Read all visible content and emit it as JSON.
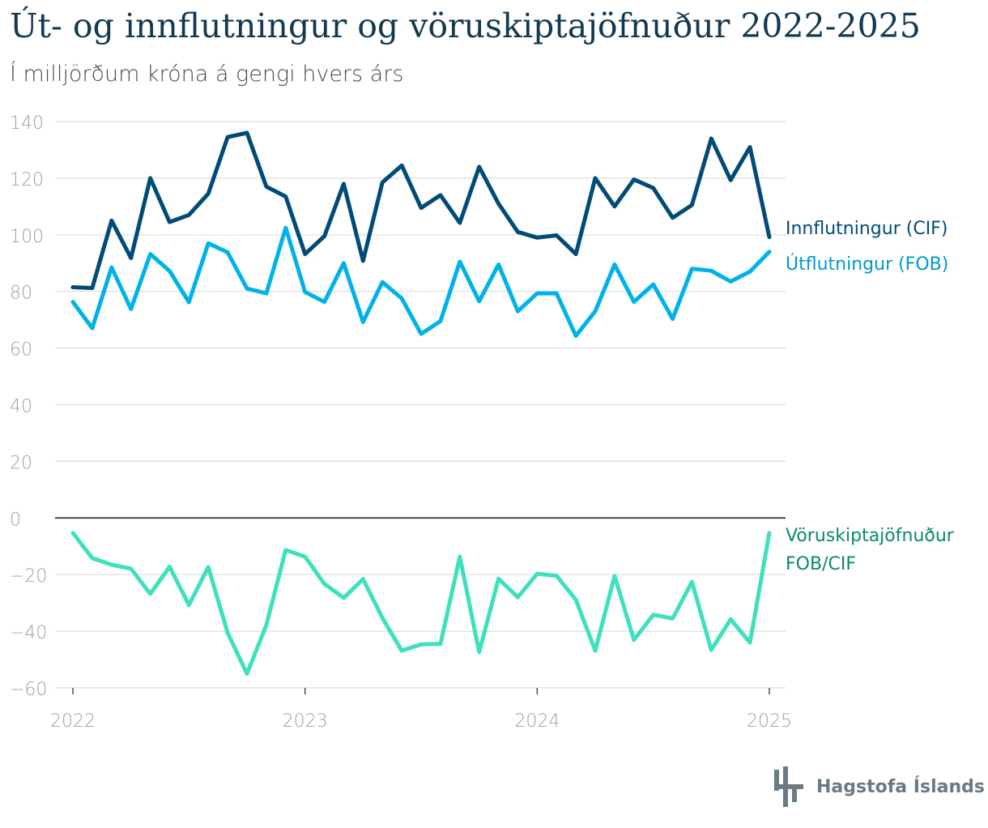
{
  "title": "Út- og innflutningur og vöruskiptajöfnuður 2022-2025",
  "subtitle": "Í milljörðum króna á gengi hvers árs",
  "logo_text": "Hagstofa Íslands",
  "chart_data": {
    "type": "line",
    "x": [
      "2022-01",
      "2022-02",
      "2022-03",
      "2022-04",
      "2022-05",
      "2022-06",
      "2022-07",
      "2022-08",
      "2022-09",
      "2022-10",
      "2022-11",
      "2022-12",
      "2023-01",
      "2023-02",
      "2023-03",
      "2023-04",
      "2023-05",
      "2023-06",
      "2023-07",
      "2023-08",
      "2023-09",
      "2023-10",
      "2023-11",
      "2023-12",
      "2024-01",
      "2024-02",
      "2024-03",
      "2024-04",
      "2024-05",
      "2024-06",
      "2024-07",
      "2024-08",
      "2024-09",
      "2024-10",
      "2024-11",
      "2024-12",
      "2025-01"
    ],
    "x_ticks": [
      "2022",
      "2023",
      "2024",
      "2025"
    ],
    "y_ticks": [
      140,
      120,
      100,
      80,
      60,
      40,
      20,
      0,
      -20,
      -40,
      -60
    ],
    "ylim": [
      -60,
      140
    ],
    "grid": true,
    "series": [
      {
        "name": "Innflutningur (CIF)",
        "color": "#004b78",
        "values": [
          81.5,
          81.2,
          105,
          91.8,
          120,
          104.5,
          107,
          114.5,
          134.5,
          136,
          117,
          113.5,
          93.2,
          99.5,
          118,
          90.8,
          118.5,
          124.5,
          109.5,
          114,
          104.2,
          124,
          111,
          101,
          99,
          99.8,
          93.2,
          120,
          110,
          119.5,
          116.5,
          106,
          110.5,
          134,
          119.3,
          131,
          99.2
        ]
      },
      {
        "name": "Útflutningur (FOB)",
        "color": "#00b2ea",
        "values": [
          76.3,
          67,
          88.5,
          73.8,
          93.2,
          87.2,
          76.2,
          97,
          93.8,
          81,
          79.3,
          102.5,
          79.8,
          76.3,
          90,
          69.2,
          83.3,
          77.5,
          65,
          69.5,
          90.5,
          76.5,
          89.5,
          73,
          79.3,
          79.3,
          64.3,
          73,
          89.5,
          76.3,
          82.5,
          70.3,
          88,
          87.3,
          83.5,
          87,
          94
        ]
      },
      {
        "name": "Vöruskiptajöfnuður FOB/CIF",
        "color": "#3ee0bd",
        "label_color": "#0a8a6e",
        "values": [
          -5.3,
          -14.2,
          -16.5,
          -17.9,
          -26.8,
          -17.2,
          -30.8,
          -17.3,
          -40.6,
          -55,
          -37.8,
          -11.3,
          -13.7,
          -23.3,
          -28.2,
          -21.6,
          -35.3,
          -46.9,
          -44.6,
          -44.5,
          -13.7,
          -47.4,
          -21.5,
          -28,
          -19.7,
          -20.4,
          -28.9,
          -46.9,
          -20.5,
          -43.1,
          -34.2,
          -35.5,
          -22.6,
          -46.6,
          -35.8,
          -44,
          -5.3
        ]
      }
    ],
    "series_labels": {
      "imports": "Innflutningur (CIF)",
      "exports": "Útflutningur (FOB)",
      "balance_line1": "Vöruskiptajöfnuður",
      "balance_line2": "FOB/CIF"
    }
  }
}
